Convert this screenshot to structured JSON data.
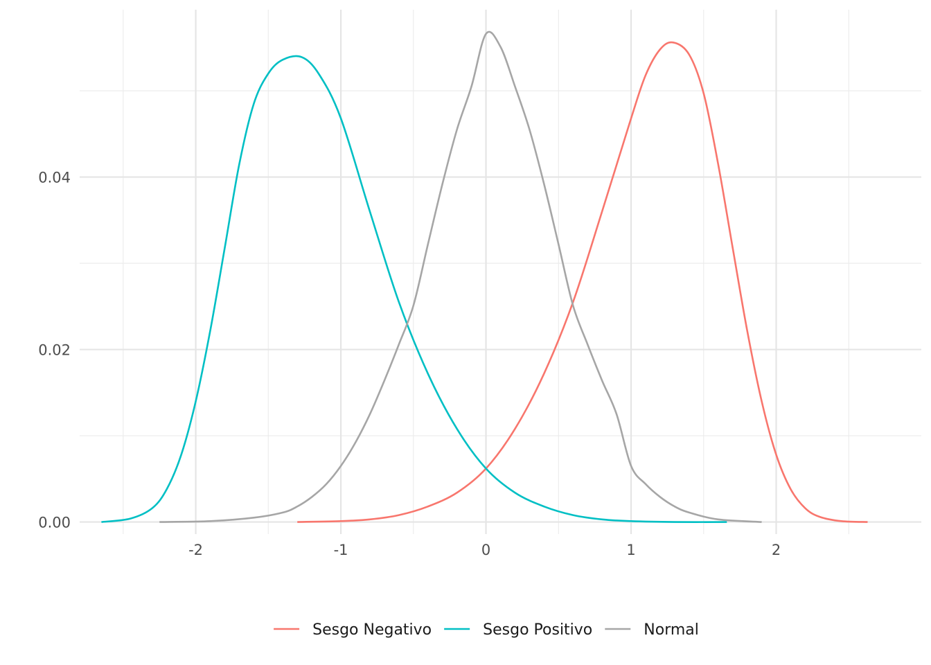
{
  "chart_data": {
    "type": "line",
    "xlim": [
      -2.8,
      3.0
    ],
    "ylim": [
      -0.0014,
      0.0594
    ],
    "x_ticks": [
      -2,
      -1,
      0,
      1,
      2
    ],
    "x_tick_labels": [
      "-2",
      "-1",
      "0",
      "1",
      "2"
    ],
    "y_ticks": [
      0.0,
      0.02,
      0.04
    ],
    "y_tick_labels": [
      "0.00",
      "0.02",
      "0.04"
    ],
    "grid": true,
    "legend_position": "bottom",
    "series": [
      {
        "name": "Sesgo Negativo",
        "color": "#F8766D",
        "x": [
          -1.3,
          -1.0,
          -0.8,
          -0.6,
          -0.4,
          -0.2,
          0.0,
          0.2,
          0.4,
          0.6,
          0.8,
          1.0,
          1.1,
          1.2,
          1.29,
          1.4,
          1.5,
          1.6,
          1.7,
          1.8,
          1.9,
          2.0,
          2.1,
          2.2,
          2.3,
          2.45,
          2.63
        ],
        "y": [
          0.0,
          0.0001,
          0.0003,
          0.0008,
          0.0018,
          0.0034,
          0.0062,
          0.0108,
          0.0172,
          0.0255,
          0.036,
          0.0468,
          0.0518,
          0.0548,
          0.0556,
          0.0542,
          0.0497,
          0.0415,
          0.0318,
          0.0222,
          0.014,
          0.0078,
          0.0038,
          0.0016,
          0.0006,
          0.0001,
          0.0
        ]
      },
      {
        "name": "Sesgo Positivo",
        "color": "#00BFC4",
        "x": [
          -2.65,
          -2.45,
          -2.3,
          -2.2,
          -2.1,
          -2.0,
          -1.9,
          -1.8,
          -1.7,
          -1.6,
          -1.5,
          -1.4,
          -1.27,
          -1.15,
          -1.0,
          -0.8,
          -0.6,
          -0.4,
          -0.2,
          0.0,
          0.2,
          0.4,
          0.6,
          0.8,
          1.0,
          1.3,
          1.66
        ],
        "y": [
          0.0,
          0.0004,
          0.0016,
          0.0038,
          0.0078,
          0.014,
          0.0222,
          0.0318,
          0.0415,
          0.0485,
          0.052,
          0.0536,
          0.0539,
          0.0519,
          0.0468,
          0.036,
          0.0255,
          0.0172,
          0.0108,
          0.0062,
          0.0034,
          0.0018,
          0.0008,
          0.0003,
          0.0001,
          0.0,
          0.0
        ]
      },
      {
        "name": "Normal",
        "color": "#A6A6A6",
        "x": [
          -2.25,
          -1.9,
          -1.6,
          -1.4,
          -1.3,
          -1.2,
          -1.1,
          -1.0,
          -0.9,
          -0.8,
          -0.7,
          -0.6,
          -0.5,
          -0.4,
          -0.3,
          -0.2,
          -0.1,
          0.0,
          0.1,
          0.2,
          0.3,
          0.4,
          0.5,
          0.6,
          0.7,
          0.8,
          0.9,
          1.0,
          1.1,
          1.2,
          1.3,
          1.4,
          1.6,
          1.9
        ],
        "y": [
          0.0,
          0.0001,
          0.0005,
          0.0011,
          0.0018,
          0.0029,
          0.0044,
          0.0065,
          0.0092,
          0.0125,
          0.0164,
          0.0206,
          0.0251,
          0.0322,
          0.0392,
          0.0455,
          0.0505,
          0.0566,
          0.0551,
          0.0505,
          0.0455,
          0.0392,
          0.0322,
          0.0251,
          0.0206,
          0.0164,
          0.0125,
          0.0065,
          0.0044,
          0.0029,
          0.0018,
          0.0011,
          0.0003,
          0.0
        ]
      }
    ]
  }
}
